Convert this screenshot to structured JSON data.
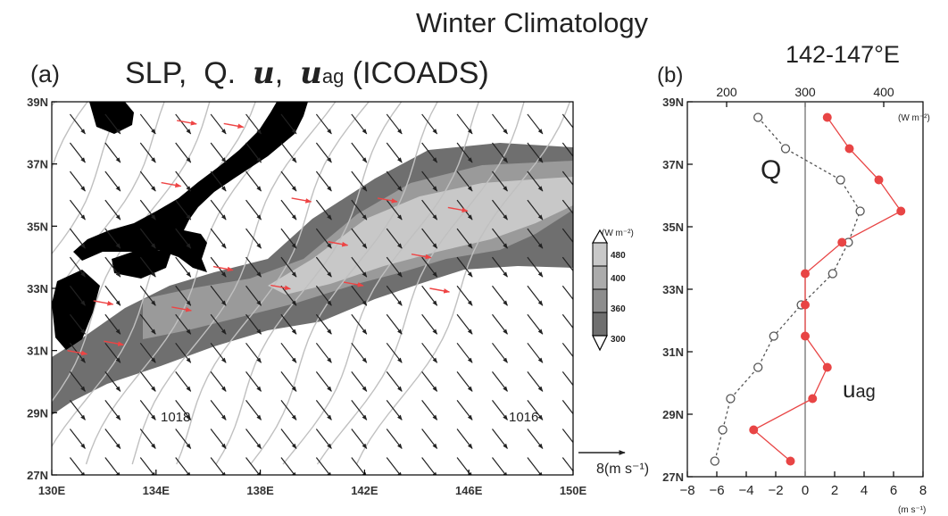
{
  "figure": {
    "title": "Winter Climatology"
  },
  "panel_a": {
    "label": "(a)",
    "title_prefix": "SLP,  Q.  ",
    "title_u": "u",
    "title_sep": ",  ",
    "title_uag": "u",
    "title_ag_sub": "ag",
    "title_suffix": " (ICOADS)",
    "isobar_labels": [
      "1018",
      "1016"
    ],
    "colorbar_unit": "(W m⁻²)",
    "colorbar_ticks": [
      "480",
      "400",
      "360",
      "300"
    ],
    "colorbar_levels": [
      300,
      360,
      400,
      480
    ],
    "ref_vector_label": "8(m s⁻¹)",
    "ref_vector_value": 8,
    "colors": {
      "land": "#000000",
      "q_low": "#6f6f6f",
      "q_mid": "#9a9a9a",
      "q_high": "#c8c8c8",
      "wind_vector": "#222222",
      "ageo_vector": "#ee4444",
      "isobar": "#c0c0c0"
    }
  },
  "panel_b": {
    "label": "(b)",
    "title": "142-147°E",
    "q_label": "Q",
    "uag_label_main": "u",
    "uag_label_sub": "ag",
    "top_ticks": [
      "200",
      "300",
      "400"
    ],
    "top_unit": "(W m⁻²)",
    "bottom_ticks": [
      "−8",
      "−6",
      "−4",
      "−2",
      "0",
      "2",
      "4",
      "6",
      "8"
    ],
    "bottom_unit": "(m s⁻¹)",
    "colors": {
      "q_line": "#555555",
      "uag_line": "#e84545",
      "zero_line": "#666666"
    }
  },
  "chart_data": [
    {
      "type": "map",
      "panel": "a",
      "title": "SLP, Q. u, uag (ICOADS)",
      "x_ticks": [
        "130E",
        "134E",
        "138E",
        "142E",
        "146E",
        "150E"
      ],
      "y_ticks": [
        "39N",
        "37N",
        "35N",
        "33N",
        "31N",
        "29N",
        "27N"
      ],
      "xlim": [
        130,
        150
      ],
      "ylim": [
        27,
        39
      ],
      "shaded_variable": "Q",
      "shading_levels": [
        300,
        360,
        400,
        480
      ],
      "contour_variable": "SLP",
      "contour_labels": [
        "1018",
        "1016"
      ]
    },
    {
      "type": "line",
      "panel": "b",
      "title": "142-147°E",
      "y_ticks": [
        "39N",
        "37N",
        "35N",
        "33N",
        "31N",
        "29N",
        "27N"
      ],
      "ylim": [
        27,
        39
      ],
      "series": [
        {
          "name": "Q",
          "axis": "top",
          "xlim": [
            150,
            450
          ],
          "points": [
            {
              "lat": 38.5,
              "x": 240
            },
            {
              "lat": 37.5,
              "x": 275
            },
            {
              "lat": 36.5,
              "x": 345
            },
            {
              "lat": 35.5,
              "x": 370
            },
            {
              "lat": 34.5,
              "x": 355
            },
            {
              "lat": 33.5,
              "x": 335
            },
            {
              "lat": 32.5,
              "x": 295
            },
            {
              "lat": 31.5,
              "x": 260
            },
            {
              "lat": 30.5,
              "x": 240
            },
            {
              "lat": 29.5,
              "x": 205
            },
            {
              "lat": 28.5,
              "x": 195
            },
            {
              "lat": 27.5,
              "x": 185
            }
          ]
        },
        {
          "name": "uag",
          "axis": "bottom",
          "xlim": [
            -8,
            8
          ],
          "points": [
            {
              "lat": 38.5,
              "x": 1.5
            },
            {
              "lat": 37.5,
              "x": 3.0
            },
            {
              "lat": 36.5,
              "x": 5.0
            },
            {
              "lat": 35.5,
              "x": 6.5
            },
            {
              "lat": 34.5,
              "x": 2.5
            },
            {
              "lat": 33.5,
              "x": 0.0
            },
            {
              "lat": 32.5,
              "x": 0.0
            },
            {
              "lat": 31.5,
              "x": 0.0
            },
            {
              "lat": 30.5,
              "x": 1.5
            },
            {
              "lat": 29.5,
              "x": 0.5
            },
            {
              "lat": 28.5,
              "x": -3.5
            },
            {
              "lat": 27.5,
              "x": -1.0
            }
          ]
        }
      ]
    }
  ]
}
